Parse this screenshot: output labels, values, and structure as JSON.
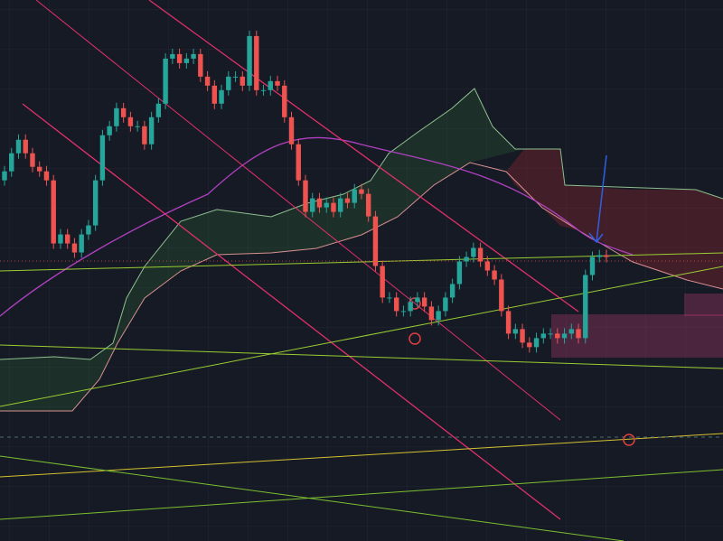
{
  "chart_data": {
    "type": "candlestick",
    "up_color": "#26a69a",
    "down_color": "#ef5350",
    "ylim": [
      0,
      600
    ],
    "open": [
      400,
      410,
      430,
      445,
      430,
      415,
      410,
      400,
      330,
      340,
      330,
      320,
      340,
      350,
      400,
      450,
      460,
      480,
      470,
      460,
      460,
      440,
      470,
      485,
      535,
      540,
      530,
      535,
      540,
      515,
      505,
      485,
      500,
      515,
      515,
      505,
      560,
      500,
      500,
      510,
      505,
      470,
      440,
      400,
      365,
      380,
      370,
      375,
      365,
      380,
      375,
      390,
      385,
      360,
      305,
      270,
      270,
      255,
      255,
      265,
      270,
      260,
      245,
      255,
      270,
      285,
      310,
      315,
      325,
      310,
      300,
      290,
      255,
      230,
      235,
      220,
      215,
      225,
      230,
      230,
      225,
      230,
      235,
      225,
      295,
      315,
      317
    ],
    "high": [
      416,
      436,
      451,
      451,
      436,
      421,
      416,
      406,
      346,
      346,
      336,
      346,
      356,
      406,
      456,
      466,
      486,
      486,
      476,
      466,
      466,
      476,
      491,
      541,
      546,
      546,
      541,
      546,
      546,
      521,
      511,
      506,
      521,
      521,
      521,
      566,
      566,
      506,
      516,
      516,
      511,
      476,
      446,
      406,
      386,
      386,
      381,
      381,
      386,
      386,
      396,
      396,
      391,
      366,
      311,
      276,
      276,
      261,
      271,
      276,
      276,
      266,
      261,
      276,
      291,
      316,
      321,
      331,
      331,
      316,
      306,
      296,
      261,
      241,
      241,
      226,
      231,
      236,
      236,
      236,
      236,
      241,
      241,
      301,
      321,
      323,
      323
    ],
    "low": [
      394,
      404,
      424,
      424,
      409,
      404,
      394,
      324,
      324,
      324,
      314,
      314,
      334,
      344,
      394,
      444,
      454,
      464,
      454,
      454,
      434,
      434,
      464,
      479,
      529,
      524,
      524,
      529,
      509,
      499,
      479,
      479,
      494,
      509,
      499,
      499,
      494,
      494,
      494,
      499,
      464,
      434,
      394,
      359,
      359,
      364,
      364,
      359,
      359,
      369,
      369,
      379,
      354,
      299,
      264,
      264,
      249,
      249,
      249,
      259,
      254,
      239,
      239,
      249,
      264,
      279,
      304,
      309,
      304,
      294,
      284,
      249,
      224,
      224,
      214,
      209,
      209,
      219,
      224,
      219,
      219,
      224,
      219,
      219,
      289,
      309,
      309
    ],
    "close": [
      410,
      430,
      445,
      430,
      415,
      410,
      400,
      330,
      340,
      330,
      320,
      340,
      350,
      400,
      450,
      460,
      480,
      470,
      460,
      460,
      440,
      470,
      485,
      535,
      540,
      530,
      535,
      540,
      515,
      505,
      485,
      500,
      515,
      515,
      505,
      560,
      500,
      500,
      510,
      505,
      470,
      440,
      400,
      365,
      380,
      370,
      375,
      365,
      380,
      375,
      390,
      385,
      360,
      305,
      270,
      270,
      255,
      255,
      265,
      270,
      260,
      245,
      255,
      270,
      285,
      310,
      315,
      325,
      310,
      300,
      290,
      255,
      230,
      235,
      220,
      215,
      225,
      230,
      230,
      225,
      230,
      235,
      225,
      295,
      315,
      317,
      315
    ]
  }
}
